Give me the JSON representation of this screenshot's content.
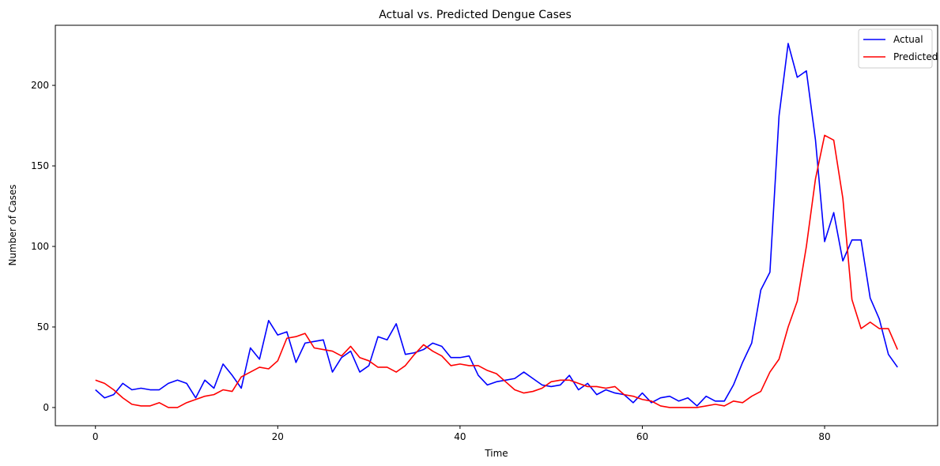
{
  "chart_data": {
    "type": "line",
    "title": "Actual vs. Predicted Dengue Cases",
    "xlabel": "Time",
    "ylabel": "Number of Cases",
    "xlim": [
      -4.4,
      92.4
    ],
    "ylim": [
      -11.3,
      237.3
    ],
    "xticks": [
      0,
      20,
      40,
      60,
      80
    ],
    "yticks": [
      0,
      50,
      100,
      150,
      200
    ],
    "grid": false,
    "legend_position": "top-right",
    "x": [
      0,
      1,
      2,
      3,
      4,
      5,
      6,
      7,
      8,
      9,
      10,
      11,
      12,
      13,
      14,
      15,
      16,
      17,
      18,
      19,
      20,
      21,
      22,
      23,
      24,
      25,
      26,
      27,
      28,
      29,
      30,
      31,
      32,
      33,
      34,
      35,
      36,
      37,
      38,
      39,
      40,
      41,
      42,
      43,
      44,
      45,
      46,
      47,
      48,
      49,
      50,
      51,
      52,
      53,
      54,
      55,
      56,
      57,
      58,
      59,
      60,
      61,
      62,
      63,
      64,
      65,
      66,
      67,
      68,
      69,
      70,
      71,
      72,
      73,
      74,
      75,
      76,
      77,
      78,
      79,
      80,
      81,
      82,
      83,
      84,
      85,
      86,
      87,
      88
    ],
    "series": [
      {
        "name": "Actual",
        "color": "#0000ff",
        "values": [
          11,
          6,
          8,
          15,
          11,
          12,
          11,
          11,
          15,
          17,
          15,
          6,
          17,
          12,
          27,
          20,
          12,
          37,
          30,
          54,
          45,
          47,
          28,
          40,
          41,
          42,
          22,
          31,
          35,
          22,
          26,
          44,
          42,
          52,
          33,
          34,
          36,
          40,
          38,
          31,
          31,
          32,
          20,
          14,
          16,
          17,
          18,
          22,
          18,
          14,
          13,
          14,
          20,
          11,
          15,
          8,
          11,
          9,
          8,
          3,
          9,
          3,
          6,
          7,
          4,
          6,
          1,
          7,
          4,
          4,
          14,
          28,
          40,
          73,
          84,
          181,
          226,
          205,
          209,
          166,
          103,
          121,
          91,
          104,
          104,
          68,
          55,
          33,
          25
        ]
      },
      {
        "name": "Predicted",
        "color": "#ff0000",
        "values": [
          17,
          15,
          11,
          6,
          2,
          1,
          1,
          3,
          0,
          0,
          3,
          5,
          7,
          8,
          11,
          10,
          19,
          22,
          25,
          24,
          29,
          43,
          44,
          46,
          37,
          36,
          35,
          32,
          38,
          31,
          29,
          25,
          25,
          22,
          26,
          33,
          39,
          35,
          32,
          26,
          27,
          26,
          26,
          23,
          21,
          16,
          11,
          9,
          10,
          12,
          16,
          17,
          17,
          15,
          13,
          13,
          12,
          13,
          8,
          7,
          5,
          4,
          1,
          0,
          0,
          0,
          0,
          1,
          2,
          1,
          4,
          3,
          7,
          10,
          22,
          30,
          50,
          66,
          100,
          142,
          169,
          166,
          130,
          67,
          49,
          53,
          49,
          49,
          36
        ]
      }
    ]
  }
}
